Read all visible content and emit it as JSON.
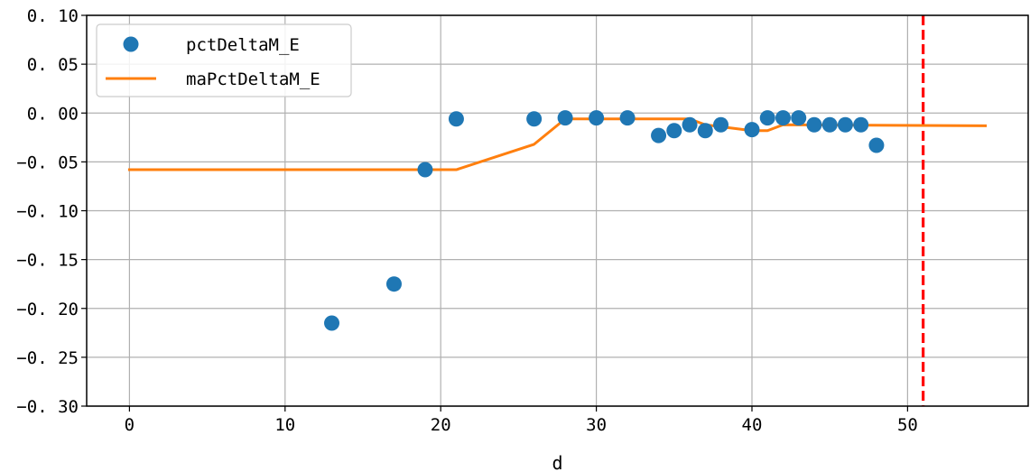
{
  "chart_data": {
    "type": "scatter",
    "title": "",
    "xlabel": "d",
    "ylabel": "",
    "xlim": [
      -2.75,
      57.75
    ],
    "ylim": [
      -0.3,
      0.1
    ],
    "grid": true,
    "legend_position": "top-left",
    "x_ticks": [
      0,
      10,
      20,
      30,
      40,
      50
    ],
    "x_tick_labels": [
      "0",
      "10",
      "20",
      "30",
      "40",
      "50"
    ],
    "y_ticks": [
      0.1,
      0.05,
      0.0,
      -0.05,
      -0.1,
      -0.15,
      -0.2,
      -0.25,
      -0.3
    ],
    "y_tick_labels": [
      "0. 10",
      "0. 05",
      "0. 00",
      "−0. 05",
      "−0. 10",
      "−0. 15",
      "−0. 20",
      "−0. 25",
      "−0. 30"
    ],
    "series": [
      {
        "name": "pctDeltaM_E",
        "kind": "scatter",
        "color": "#1f77b4",
        "x": [
          13,
          17,
          19,
          21,
          26,
          28,
          30,
          32,
          34,
          35,
          36,
          37,
          38,
          40,
          41,
          42,
          43,
          44,
          45,
          46,
          47,
          48
        ],
        "y": [
          -0.215,
          -0.175,
          -0.058,
          -0.006,
          -0.006,
          -0.005,
          -0.005,
          -0.005,
          -0.023,
          -0.018,
          -0.012,
          -0.018,
          -0.012,
          -0.017,
          -0.005,
          -0.005,
          -0.005,
          -0.012,
          -0.012,
          -0.012,
          -0.012,
          -0.033
        ]
      },
      {
        "name": "maPctDeltaM_E",
        "kind": "line",
        "color": "#ff7f0e",
        "x": [
          0,
          21,
          26,
          28,
          36,
          37,
          40,
          41,
          42,
          55
        ],
        "y": [
          -0.058,
          -0.058,
          -0.032,
          -0.006,
          -0.006,
          -0.012,
          -0.018,
          -0.018,
          -0.012,
          -0.013
        ]
      }
    ],
    "reference_line": {
      "orientation": "vertical",
      "x": 51,
      "color": "#ff0000",
      "style": "dashed"
    }
  }
}
